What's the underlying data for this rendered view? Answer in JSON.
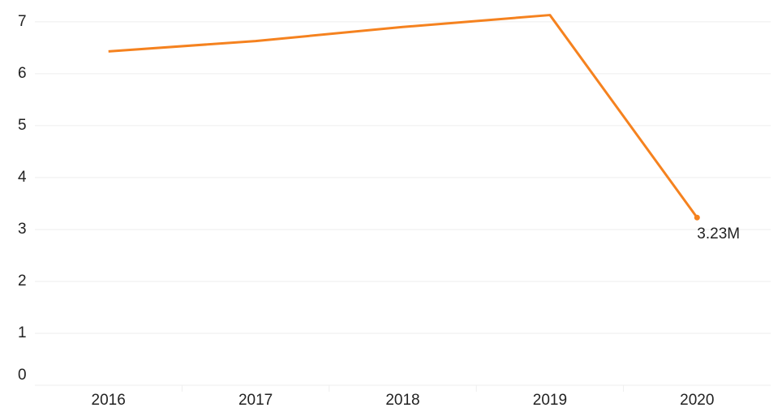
{
  "chart_data": {
    "type": "line",
    "categories": [
      "2016",
      "2017",
      "2018",
      "2019",
      "2020"
    ],
    "series": [
      {
        "color": "#f5821f",
        "values": [
          6.43,
          6.63,
          6.9,
          7.13,
          3.23
        ],
        "value_labels": [
          null,
          null,
          null,
          null,
          "3.23M"
        ]
      }
    ],
    "ylim": [
      0,
      7.42
    ],
    "yticks": [
      0,
      1,
      2,
      3,
      4,
      5,
      6,
      7
    ],
    "grid": true
  }
}
